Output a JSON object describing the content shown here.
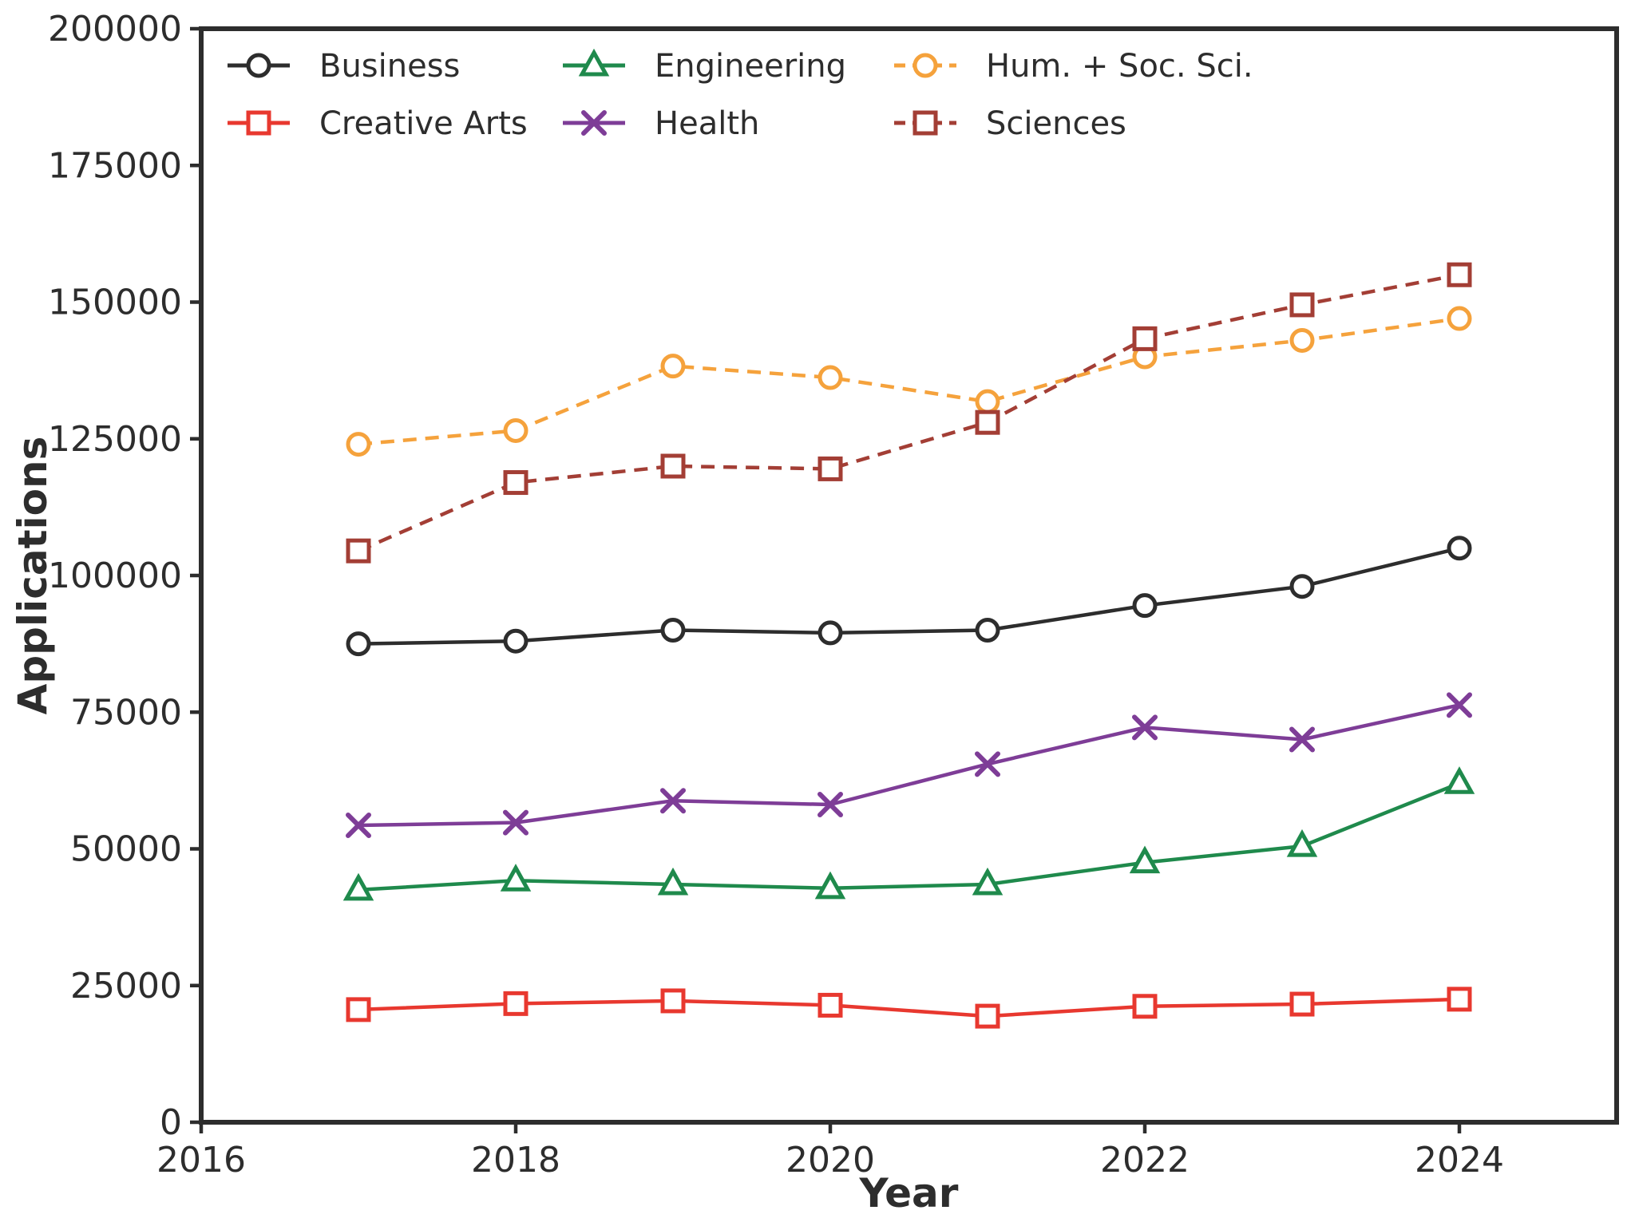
{
  "figure": {
    "background": "#ffffff",
    "axis_color": "#2d2d2d",
    "tick_label_color": "#2d2d2d",
    "tick_label_font_size": 44,
    "axis_label_font_size": 50,
    "legend_font_size": 40
  },
  "chart_data": {
    "type": "line",
    "title": "",
    "xlabel": "Year",
    "ylabel": "Applications",
    "x": [
      2017,
      2018,
      2019,
      2020,
      2021,
      2022,
      2023,
      2024
    ],
    "xlim": [
      2016,
      2025
    ],
    "ylim": [
      0,
      200000
    ],
    "xticks": [
      2016,
      2018,
      2020,
      2022,
      2024
    ],
    "yticks": [
      0,
      25000,
      50000,
      75000,
      100000,
      125000,
      150000,
      175000,
      200000
    ],
    "grid": false,
    "legend_position": "upper-left inside plot, 2 rows x 3 columns, no frame",
    "series": [
      {
        "name": "Business",
        "color": "#2d2d2d",
        "marker": "circle",
        "line_style": "solid",
        "values": [
          87500,
          88000,
          90000,
          89500,
          90000,
          94500,
          98000,
          105000
        ]
      },
      {
        "name": "Creative Arts",
        "color": "#e8382f",
        "marker": "square",
        "line_style": "solid",
        "values": [
          20600,
          21700,
          22200,
          21400,
          19400,
          21200,
          21600,
          22500
        ]
      },
      {
        "name": "Engineering",
        "color": "#1f8a4c",
        "marker": "triangle",
        "line_style": "solid",
        "values": [
          42500,
          44200,
          43500,
          42800,
          43500,
          47500,
          50500,
          62000
        ]
      },
      {
        "name": "Health",
        "color": "#7e3d97",
        "marker": "x",
        "line_style": "solid",
        "values": [
          54300,
          54800,
          58800,
          58100,
          65500,
          72200,
          70000,
          76300
        ]
      },
      {
        "name": "Hum. + Soc. Sci.",
        "color": "#f5a23c",
        "marker": "circle",
        "line_style": "dashed",
        "values": [
          124000,
          126500,
          138300,
          136200,
          131800,
          140000,
          143000,
          147000
        ]
      },
      {
        "name": "Sciences",
        "color": "#a33e35",
        "marker": "square",
        "line_style": "dashed",
        "values": [
          104500,
          117000,
          120000,
          119500,
          128000,
          143300,
          149500,
          155000
        ]
      }
    ],
    "legend_rows": [
      [
        "Business",
        "Engineering",
        "Hum. + Soc. Sci."
      ],
      [
        "Creative Arts",
        "Health",
        "Sciences"
      ]
    ]
  }
}
